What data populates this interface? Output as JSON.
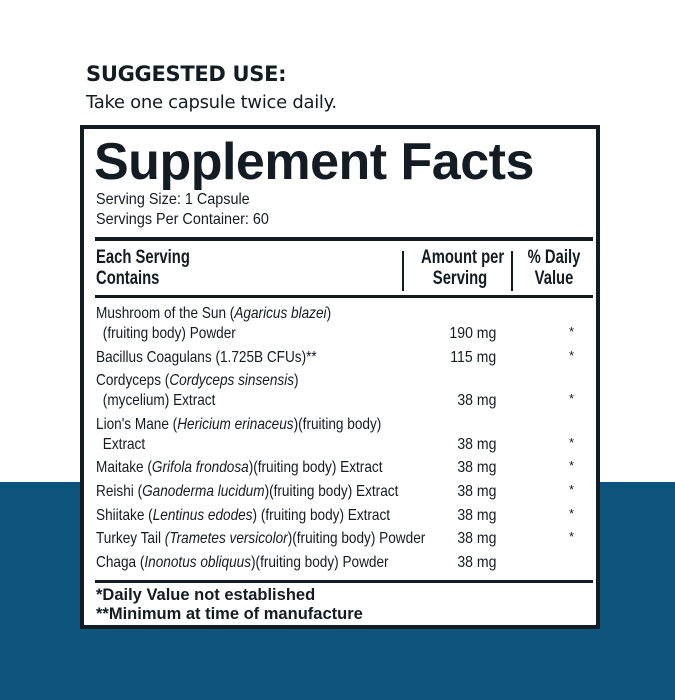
{
  "suggested_use": {
    "heading": "SUGGESTED USE:",
    "text": "Take one capsule twice daily."
  },
  "facts": {
    "title": "Supplement Facts",
    "serving_size": "Serving Size: 1 Capsule",
    "servings_per_container": "Servings Per Container: 60",
    "headers": {
      "col1_line1": "Each Serving",
      "col1_line2": "Contains",
      "col2_line1": "Amount per",
      "col2_line2": "Serving",
      "col3_line1": "% Daily",
      "col3_line2": "Value"
    },
    "rows": [
      {
        "pre": "Mushroom of the Sun (",
        "italic": "Agaricus blazei",
        "post": ")",
        "cont": "(fruiting body) Powder",
        "amount": "190 mg",
        "dv": "*"
      },
      {
        "pre": "Bacillus Coagulans (1.725B CFUs)**",
        "italic": "",
        "post": "",
        "cont": "",
        "amount": "115 mg",
        "dv": "*"
      },
      {
        "pre": "Cordyceps (",
        "italic": "Cordyceps sinsensis",
        "post": ")",
        "cont": "(mycelium) Extract",
        "amount": "38 mg",
        "dv": "*"
      },
      {
        "pre": "Lion's Mane (",
        "italic": "Hericium erinaceus",
        "post": ")(fruiting body)",
        "cont": "Extract",
        "amount": "38 mg",
        "dv": "*"
      },
      {
        "pre": "Maitake (",
        "italic": "Grifola frondosa",
        "post": ")(fruiting body) Extract",
        "cont": "",
        "amount": "38 mg",
        "dv": "*"
      },
      {
        "pre": "Reishi (",
        "italic": "Ganoderma lucidum",
        "post": ")(fruiting body) Extract",
        "cont": "",
        "amount": "38 mg",
        "dv": "*"
      },
      {
        "pre": "Shiitake (",
        "italic": "Lentinus edodes",
        "post": ") (fruiting body) Extract",
        "cont": "",
        "amount": "38 mg",
        "dv": "*"
      },
      {
        "pre": "Turkey Tail ",
        "italic": "(Trametes versicolor",
        "post": ")(fruiting body) Powder",
        "cont": "",
        "amount": "38 mg",
        "dv": "*"
      },
      {
        "pre": "Chaga (",
        "italic": "Inonotus obliquus",
        "post": ")(fruiting body) Powder",
        "cont": "",
        "amount": "38 mg",
        "dv": ""
      }
    ],
    "footnotes": [
      "*Daily Value not established",
      "**Minimum at time of manufacture"
    ]
  },
  "colors": {
    "band": "#0d547c",
    "ink": "#131b23"
  }
}
